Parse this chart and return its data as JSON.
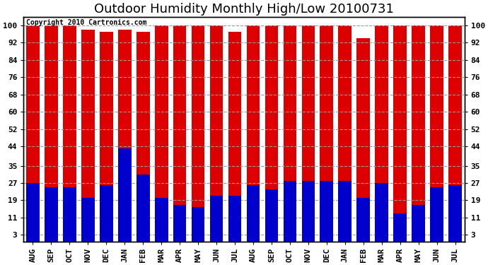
{
  "title": "Outdoor Humidity Monthly High/Low 20100731",
  "copyright": "Copyright 2010 Cartronics.com",
  "categories": [
    "AUG",
    "SEP",
    "OCT",
    "NOV",
    "DEC",
    "JAN",
    "FEB",
    "MAR",
    "APR",
    "MAY",
    "JUN",
    "JUL",
    "AUG",
    "SEP",
    "OCT",
    "NOV",
    "DEC",
    "JAN",
    "FEB",
    "MAR",
    "APR",
    "MAY",
    "JUN",
    "JUL"
  ],
  "high_values": [
    100,
    100,
    100,
    98,
    97,
    98,
    97,
    100,
    100,
    100,
    100,
    97,
    100,
    100,
    100,
    100,
    100,
    100,
    94,
    100,
    100,
    100,
    100,
    100
  ],
  "low_values": [
    27,
    25,
    25,
    20,
    26,
    43,
    31,
    20,
    17,
    16,
    21,
    21,
    26,
    24,
    28,
    28,
    28,
    28,
    20,
    27,
    13,
    17,
    25,
    26
  ],
  "bar_color_high": "#dd0000",
  "bar_color_low": "#0000cc",
  "background_color": "#ffffff",
  "plot_bg_color": "#ffffff",
  "yticks": [
    3,
    11,
    19,
    27,
    35,
    44,
    52,
    60,
    68,
    76,
    84,
    92,
    100
  ],
  "ylim": [
    0,
    104
  ],
  "grid_color": "#999999",
  "title_fontsize": 13,
  "tick_fontsize": 8,
  "copyright_fontsize": 7,
  "bar_width": 0.72
}
